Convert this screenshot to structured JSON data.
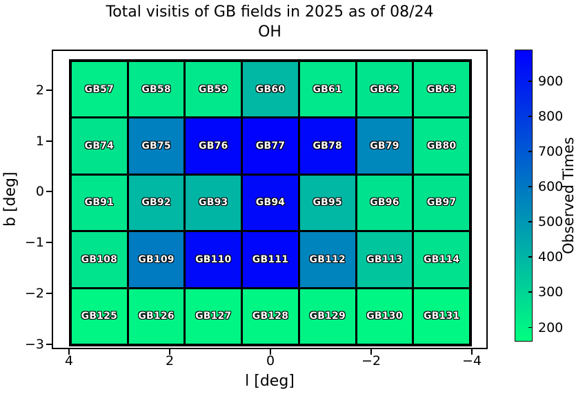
{
  "chart_data": {
    "type": "heatmap",
    "title_line1": "Total visitis of GB fields in 2025 as of 08/24",
    "title_line2": "OH",
    "xlabel": "l [deg]",
    "ylabel": "b [deg]",
    "x_axis": {
      "tick_labels": [
        "4",
        "2",
        "0",
        "−2",
        "−4"
      ],
      "tick_values": [
        4,
        2,
        0,
        -2,
        -4
      ],
      "range": [
        4.34,
        -4.32
      ],
      "reversed": true
    },
    "y_axis": {
      "tick_labels": [
        "2",
        "1",
        "0",
        "−1",
        "−2",
        "−3"
      ],
      "tick_values": [
        2,
        1,
        0,
        -1,
        -2,
        -3
      ],
      "range": [
        -3.05,
        2.61
      ]
    },
    "colorbar": {
      "label": "Observed Times",
      "vmin": 160,
      "vmax": 990,
      "tick_values": [
        200,
        300,
        400,
        500,
        600,
        700,
        800,
        900
      ],
      "tick_labels": [
        "200",
        "300",
        "400",
        "500",
        "600",
        "700",
        "800",
        "900"
      ],
      "colormap": "winter_r",
      "color_min": "#00FF80",
      "color_max": "#0000FF"
    },
    "grid_line_color": "#000000",
    "cell_label_color": "#ffffff",
    "columns": 7,
    "rows": 5,
    "cells": [
      [
        {
          "label": "GB57",
          "value": 220
        },
        {
          "label": "GB58",
          "value": 235
        },
        {
          "label": "GB59",
          "value": 235
        },
        {
          "label": "GB60",
          "value": 390
        },
        {
          "label": "GB61",
          "value": 235
        },
        {
          "label": "GB62",
          "value": 245
        },
        {
          "label": "GB63",
          "value": 235
        }
      ],
      [
        {
          "label": "GB74",
          "value": 250
        },
        {
          "label": "GB75",
          "value": 575
        },
        {
          "label": "GB76",
          "value": 970
        },
        {
          "label": "GB77",
          "value": 985
        },
        {
          "label": "GB78",
          "value": 965
        },
        {
          "label": "GB79",
          "value": 550
        },
        {
          "label": "GB80",
          "value": 240
        }
      ],
      [
        {
          "label": "GB91",
          "value": 240
        },
        {
          "label": "GB92",
          "value": 390
        },
        {
          "label": "GB93",
          "value": 400
        },
        {
          "label": "GB94",
          "value": 960
        },
        {
          "label": "GB95",
          "value": 390
        },
        {
          "label": "GB96",
          "value": 255
        },
        {
          "label": "GB97",
          "value": 250
        }
      ],
      [
        {
          "label": "GB108",
          "value": 245
        },
        {
          "label": "GB109",
          "value": 590
        },
        {
          "label": "GB110",
          "value": 960
        },
        {
          "label": "GB111",
          "value": 970
        },
        {
          "label": "GB112",
          "value": 560
        },
        {
          "label": "GB113",
          "value": 350
        },
        {
          "label": "GB114",
          "value": 255
        }
      ],
      [
        {
          "label": "GB125",
          "value": 190
        },
        {
          "label": "GB126",
          "value": 195
        },
        {
          "label": "GB127",
          "value": 190
        },
        {
          "label": "GB128",
          "value": 190
        },
        {
          "label": "GB129",
          "value": 195
        },
        {
          "label": "GB130",
          "value": 190
        },
        {
          "label": "GB131",
          "value": 185
        }
      ]
    ]
  }
}
